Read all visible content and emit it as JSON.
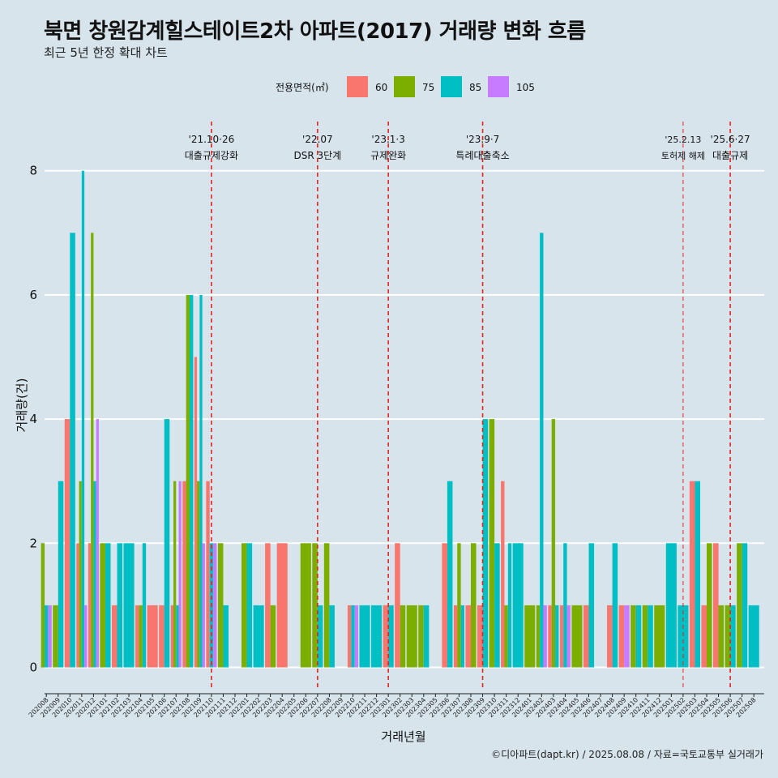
{
  "header": {
    "title": "북면 창원감계힐스테이트2차 아파트(2017) 거래량 변화 흐름",
    "subtitle": "최근 5년 한정 확대 차트"
  },
  "caption": "©디아파트(dapt.kr) / 2025.08.08 / 자료=국토교통부 실거래가",
  "chart_data": {
    "type": "bar",
    "title": "북면 창원감계힐스테이트2차 아파트(2017) 거래량 변화 흐름",
    "subtitle": "최근 5년 한정 확대 차트",
    "xlabel": "거래년월",
    "ylabel": "거래량(건)",
    "ylim": [
      0,
      9.2
    ],
    "yticks": [
      0,
      2,
      4,
      6,
      8
    ],
    "grid": "horizontal",
    "legend": {
      "title": "전용면적(㎡)",
      "position": "top"
    },
    "series_colors": {
      "60": "#F8766D",
      "75": "#7CAE00",
      "85": "#00BFC4",
      "105": "#C77CFF"
    },
    "months": [
      "202008",
      "202009",
      "202010",
      "202011",
      "202012",
      "202101",
      "202102",
      "202103",
      "202104",
      "202105",
      "202106",
      "202107",
      "202108",
      "202109",
      "202110",
      "202111",
      "202112",
      "202201",
      "202202",
      "202203",
      "202204",
      "202205",
      "202206",
      "202207",
      "202208",
      "202209",
      "202210",
      "202211",
      "202212",
      "202301",
      "202302",
      "202303",
      "202304",
      "202305",
      "202306",
      "202307",
      "202308",
      "202309",
      "202310",
      "202311",
      "202312",
      "202401",
      "202402",
      "202403",
      "202404",
      "202405",
      "202406",
      "202407",
      "202408",
      "202409",
      "202410",
      "202411",
      "202412",
      "202501",
      "202502",
      "202503",
      "202504",
      "202505",
      "202506",
      "202507",
      "202508"
    ],
    "data": [
      {
        "month": "202008",
        "bars": [
          {
            "size": "75",
            "value": 2
          },
          {
            "size": "85",
            "value": 1
          },
          {
            "size": "105",
            "value": 1
          }
        ]
      },
      {
        "month": "202009",
        "bars": [
          {
            "size": "75",
            "value": 1
          },
          {
            "size": "85",
            "value": 3
          }
        ]
      },
      {
        "month": "202010",
        "bars": [
          {
            "size": "60",
            "value": 4
          },
          {
            "size": "85",
            "value": 7
          }
        ]
      },
      {
        "month": "202011",
        "bars": [
          {
            "size": "60",
            "value": 2
          },
          {
            "size": "75",
            "value": 3
          },
          {
            "size": "85",
            "value": 8
          },
          {
            "size": "105",
            "value": 1
          }
        ]
      },
      {
        "month": "202012",
        "bars": [
          {
            "size": "60",
            "value": 2
          },
          {
            "size": "75",
            "value": 7
          },
          {
            "size": "85",
            "value": 3
          },
          {
            "size": "105",
            "value": 4
          }
        ]
      },
      {
        "month": "202101",
        "bars": [
          {
            "size": "75",
            "value": 2
          },
          {
            "size": "85",
            "value": 2
          }
        ]
      },
      {
        "month": "202102",
        "bars": [
          {
            "size": "60",
            "value": 1
          },
          {
            "size": "85",
            "value": 2
          }
        ]
      },
      {
        "month": "202103",
        "bars": [
          {
            "size": "85",
            "value": 2
          }
        ]
      },
      {
        "month": "202104",
        "bars": [
          {
            "size": "60",
            "value": 1
          },
          {
            "size": "75",
            "value": 1
          },
          {
            "size": "85",
            "value": 2
          }
        ]
      },
      {
        "month": "202105",
        "bars": [
          {
            "size": "60",
            "value": 1
          }
        ]
      },
      {
        "month": "202106",
        "bars": [
          {
            "size": "60",
            "value": 1
          },
          {
            "size": "85",
            "value": 4
          }
        ]
      },
      {
        "month": "202107",
        "bars": [
          {
            "size": "60",
            "value": 1
          },
          {
            "size": "75",
            "value": 3
          },
          {
            "size": "85",
            "value": 1
          },
          {
            "size": "105",
            "value": 3
          }
        ]
      },
      {
        "month": "202108",
        "bars": [
          {
            "size": "60",
            "value": 3
          },
          {
            "size": "75",
            "value": 6
          },
          {
            "size": "85",
            "value": 6
          }
        ]
      },
      {
        "month": "202109",
        "bars": [
          {
            "size": "60",
            "value": 5
          },
          {
            "size": "75",
            "value": 3
          },
          {
            "size": "85",
            "value": 6
          },
          {
            "size": "105",
            "value": 2
          }
        ]
      },
      {
        "month": "202110",
        "bars": [
          {
            "size": "60",
            "value": 3
          },
          {
            "size": "85",
            "value": 2
          },
          {
            "size": "105",
            "value": 2
          }
        ]
      },
      {
        "month": "202111",
        "bars": [
          {
            "size": "75",
            "value": 2
          },
          {
            "size": "85",
            "value": 1
          }
        ]
      },
      {
        "month": "202112",
        "bars": []
      },
      {
        "month": "202201",
        "bars": [
          {
            "size": "75",
            "value": 2
          },
          {
            "size": "85",
            "value": 2
          }
        ]
      },
      {
        "month": "202202",
        "bars": [
          {
            "size": "85",
            "value": 1
          }
        ]
      },
      {
        "month": "202203",
        "bars": [
          {
            "size": "60",
            "value": 2
          },
          {
            "size": "75",
            "value": 1
          }
        ]
      },
      {
        "month": "202204",
        "bars": [
          {
            "size": "60",
            "value": 2
          }
        ]
      },
      {
        "month": "202205",
        "bars": []
      },
      {
        "month": "202206",
        "bars": [
          {
            "size": "75",
            "value": 2
          }
        ]
      },
      {
        "month": "202207",
        "bars": [
          {
            "size": "75",
            "value": 2
          },
          {
            "size": "85",
            "value": 1
          }
        ]
      },
      {
        "month": "202208",
        "bars": [
          {
            "size": "75",
            "value": 2
          },
          {
            "size": "85",
            "value": 1
          }
        ]
      },
      {
        "month": "202209",
        "bars": []
      },
      {
        "month": "202210",
        "bars": [
          {
            "size": "60",
            "value": 1
          },
          {
            "size": "85",
            "value": 1
          },
          {
            "size": "105",
            "value": 1
          }
        ]
      },
      {
        "month": "202211",
        "bars": [
          {
            "size": "85",
            "value": 1
          }
        ]
      },
      {
        "month": "202212",
        "bars": [
          {
            "size": "85",
            "value": 1
          }
        ]
      },
      {
        "month": "202301",
        "bars": [
          {
            "size": "60",
            "value": 1
          },
          {
            "size": "85",
            "value": 1
          }
        ]
      },
      {
        "month": "202302",
        "bars": [
          {
            "size": "60",
            "value": 2
          },
          {
            "size": "75",
            "value": 1
          }
        ]
      },
      {
        "month": "202303",
        "bars": [
          {
            "size": "75",
            "value": 1
          }
        ]
      },
      {
        "month": "202304",
        "bars": [
          {
            "size": "75",
            "value": 1
          },
          {
            "size": "85",
            "value": 1
          }
        ]
      },
      {
        "month": "202305",
        "bars": []
      },
      {
        "month": "202306",
        "bars": [
          {
            "size": "60",
            "value": 2
          },
          {
            "size": "85",
            "value": 3
          }
        ]
      },
      {
        "month": "202307",
        "bars": [
          {
            "size": "60",
            "value": 1
          },
          {
            "size": "75",
            "value": 2
          },
          {
            "size": "85",
            "value": 1
          }
        ]
      },
      {
        "month": "202308",
        "bars": [
          {
            "size": "60",
            "value": 1
          },
          {
            "size": "75",
            "value": 2
          }
        ]
      },
      {
        "month": "202309",
        "bars": [
          {
            "size": "60",
            "value": 1
          },
          {
            "size": "85",
            "value": 4
          }
        ]
      },
      {
        "month": "202310",
        "bars": [
          {
            "size": "75",
            "value": 4
          },
          {
            "size": "85",
            "value": 2
          }
        ]
      },
      {
        "month": "202311",
        "bars": [
          {
            "size": "60",
            "value": 3
          },
          {
            "size": "75",
            "value": 1
          },
          {
            "size": "85",
            "value": 2
          }
        ]
      },
      {
        "month": "202312",
        "bars": [
          {
            "size": "85",
            "value": 2
          }
        ]
      },
      {
        "month": "202401",
        "bars": [
          {
            "size": "75",
            "value": 1
          }
        ]
      },
      {
        "month": "202402",
        "bars": [
          {
            "size": "75",
            "value": 1
          },
          {
            "size": "85",
            "value": 7
          },
          {
            "size": "105",
            "value": 1
          }
        ]
      },
      {
        "month": "202403",
        "bars": [
          {
            "size": "60",
            "value": 1
          },
          {
            "size": "75",
            "value": 4
          },
          {
            "size": "85",
            "value": 1
          }
        ]
      },
      {
        "month": "202404",
        "bars": [
          {
            "size": "60",
            "value": 1
          },
          {
            "size": "85",
            "value": 2
          },
          {
            "size": "105",
            "value": 1
          }
        ]
      },
      {
        "month": "202405",
        "bars": [
          {
            "size": "75",
            "value": 1
          }
        ]
      },
      {
        "month": "202406",
        "bars": [
          {
            "size": "60",
            "value": 1
          },
          {
            "size": "85",
            "value": 2
          }
        ]
      },
      {
        "month": "202407",
        "bars": []
      },
      {
        "month": "202408",
        "bars": [
          {
            "size": "60",
            "value": 1
          },
          {
            "size": "85",
            "value": 2
          }
        ]
      },
      {
        "month": "202409",
        "bars": [
          {
            "size": "60",
            "value": 1
          },
          {
            "size": "105",
            "value": 1
          }
        ]
      },
      {
        "month": "202410",
        "bars": [
          {
            "size": "75",
            "value": 1
          },
          {
            "size": "85",
            "value": 1
          }
        ]
      },
      {
        "month": "202411",
        "bars": [
          {
            "size": "75",
            "value": 1
          },
          {
            "size": "85",
            "value": 1
          }
        ]
      },
      {
        "month": "202412",
        "bars": [
          {
            "size": "75",
            "value": 1
          }
        ]
      },
      {
        "month": "202501",
        "bars": [
          {
            "size": "85",
            "value": 2
          }
        ]
      },
      {
        "month": "202502",
        "bars": [
          {
            "size": "85",
            "value": 1
          }
        ]
      },
      {
        "month": "202503",
        "bars": [
          {
            "size": "60",
            "value": 3
          },
          {
            "size": "85",
            "value": 3
          }
        ]
      },
      {
        "month": "202504",
        "bars": [
          {
            "size": "60",
            "value": 1
          },
          {
            "size": "75",
            "value": 2
          }
        ]
      },
      {
        "month": "202505",
        "bars": [
          {
            "size": "60",
            "value": 2
          },
          {
            "size": "75",
            "value": 1
          }
        ]
      },
      {
        "month": "202506",
        "bars": [
          {
            "size": "75",
            "value": 1
          },
          {
            "size": "85",
            "value": 1
          }
        ]
      },
      {
        "month": "202507",
        "bars": [
          {
            "size": "75",
            "value": 2
          },
          {
            "size": "85",
            "value": 2
          }
        ]
      },
      {
        "month": "202508",
        "bars": [
          {
            "size": "85",
            "value": 1
          }
        ]
      }
    ],
    "events": [
      {
        "month": "202110",
        "label1": "'21.10·26",
        "label2": "대출규제강화"
      },
      {
        "month": "202207",
        "label1": "'22.07",
        "label2": "DSR 3단계"
      },
      {
        "month": "202301",
        "label1": "'23.1·3",
        "label2": "규제완화"
      },
      {
        "month": "202309",
        "label1": "'23.9·7",
        "label2": "특례대출축소"
      },
      {
        "month": "202502",
        "label1": "'25.2.13",
        "label2": "토허제 해제"
      },
      {
        "month": "202506",
        "label1": "'25.6·27",
        "label2": "대출규제"
      }
    ]
  }
}
